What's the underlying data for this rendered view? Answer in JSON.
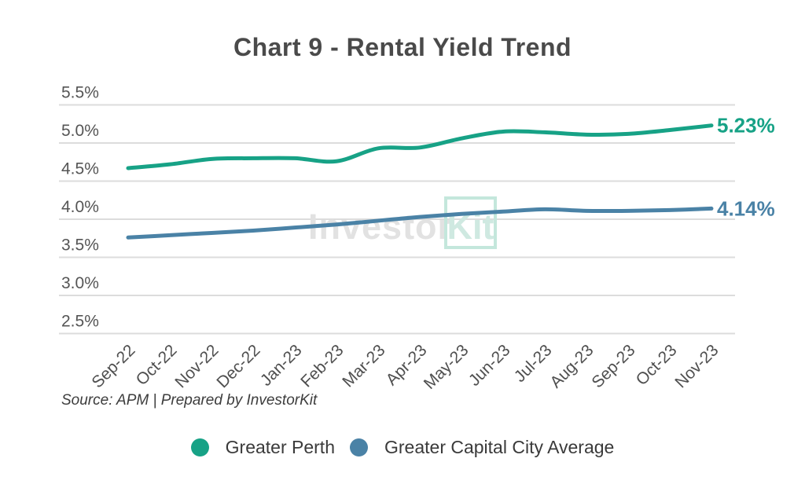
{
  "title": "Chart 9 - Rental Yield Trend",
  "source_note": "Source: APM | Prepared by InvestorKit",
  "watermark": {
    "text_main": "Investor",
    "text_accent": "Kit"
  },
  "colors": {
    "greater_perth": "#17a286",
    "greater_capital_city_average": "#4a82a6",
    "gridline": "#dcdcdc",
    "title_text": "#4a4a4a"
  },
  "chart_data": {
    "type": "line",
    "title": "Chart 9 - Rental Yield Trend",
    "categories": [
      "Sep-22",
      "Oct-22",
      "Nov-22",
      "Dec-22",
      "Jan-23",
      "Feb-23",
      "Mar-23",
      "Apr-23",
      "May-23",
      "Jun-23",
      "Jul-23",
      "Aug-23",
      "Sep-23",
      "Oct-23",
      "Nov-23"
    ],
    "series": [
      {
        "name": "Greater Perth",
        "color": "#17a286",
        "end_label": "5.23%",
        "values": [
          4.67,
          4.72,
          4.79,
          4.8,
          4.8,
          4.76,
          4.93,
          4.94,
          5.06,
          5.15,
          5.14,
          5.11,
          5.12,
          5.17,
          5.23
        ]
      },
      {
        "name": "Greater Capital City Average",
        "color": "#4a82a6",
        "end_label": "4.14%",
        "values": [
          3.76,
          3.79,
          3.82,
          3.85,
          3.89,
          3.93,
          3.98,
          4.03,
          4.07,
          4.1,
          4.13,
          4.11,
          4.11,
          4.12,
          4.14
        ]
      }
    ],
    "xlabel": "",
    "ylabel": "",
    "ylim": [
      2.5,
      5.5
    ],
    "yticks": [
      {
        "value": 5.5,
        "label": "5.5%"
      },
      {
        "value": 5.0,
        "label": "5.0%"
      },
      {
        "value": 4.5,
        "label": "4.5%"
      },
      {
        "value": 4.0,
        "label": "4.0%"
      },
      {
        "value": 3.5,
        "label": "3.5%"
      },
      {
        "value": 3.0,
        "label": "3.0%"
      },
      {
        "value": 2.5,
        "label": "2.5%"
      }
    ],
    "grid": true,
    "legend_position": "bottom"
  }
}
